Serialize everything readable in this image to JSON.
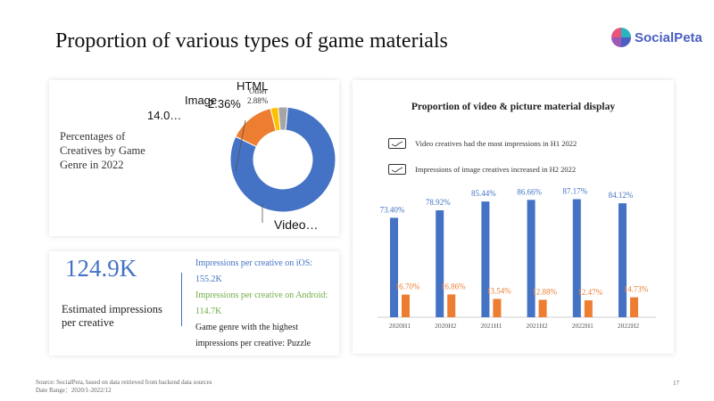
{
  "page": {
    "title": "Proportion of various types of game materials",
    "logo_text": "SocialPeta",
    "page_number": "17",
    "footer_source": "Source: SocialPeta, based on data retrieved from backend data sources",
    "footer_date": "Date Range：2020/1-2022/12"
  },
  "donut_panel": {
    "caption_lines": [
      "Percentages of",
      "Creatives by Game",
      "Genre in 2022"
    ]
  },
  "stats_panel": {
    "big_number": "124.9K",
    "label_lines": [
      "Estimated impressions",
      "per creative"
    ],
    "ios_label": "Impressions per creative on iOS:",
    "ios_value": "155.2K",
    "android_label": "Impressions per creative on Android:",
    "android_value": "114.7K",
    "genre_line1": "Game genre with the highest",
    "genre_line2": "impressions per creative: Puzzle"
  },
  "bars_panel": {
    "title": "Proportion of video & picture material display",
    "legend": [
      "Video creatives had the most impressions in H1 2022",
      "Impressions of image creatives increased in H2 2022"
    ]
  },
  "colors": {
    "video": "#4472c4",
    "image": "#ed7d31",
    "html": "#ffc000",
    "other": "#a5a5a5",
    "green_text": "#70ad47"
  },
  "chart_data": [
    {
      "type": "pie",
      "title": "Percentages of Creatives by Game Genre in 2022",
      "slices": [
        {
          "label": "Video…",
          "value": 80.76
        },
        {
          "label": "Image 14.0…",
          "value": 14.0
        },
        {
          "label": "HTML 2.36%",
          "value": 2.36
        },
        {
          "label": "Other 2.88%",
          "value": 2.88
        }
      ]
    },
    {
      "type": "bar",
      "title": "Proportion of video & picture material display",
      "categories": [
        "2020H1",
        "2020H2",
        "2021H1",
        "2021H2",
        "2022H1",
        "2022H2"
      ],
      "series": [
        {
          "values": [
            73.4,
            78.92,
            85.44,
            86.66,
            87.17,
            84.12
          ],
          "labels": [
            "73.40%",
            "78.92%",
            "85.44%",
            "86.66%",
            "87.17%",
            "84.12%"
          ]
        },
        {
          "values": [
            16.7,
            16.86,
            13.54,
            12.88,
            12.47,
            14.73
          ],
          "labels": [
            "16.70%",
            "16.86%",
            "13.54%",
            "12.88%",
            "12.47%",
            "14.73%"
          ]
        }
      ],
      "ylim": [
        0,
        100
      ]
    }
  ]
}
